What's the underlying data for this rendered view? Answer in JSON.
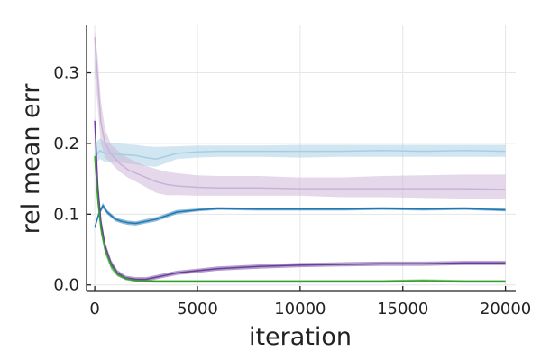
{
  "chart_data": {
    "type": "line",
    "title": "",
    "xlabel": "iteration",
    "ylabel": "rel mean err",
    "xlim": [
      -400,
      20500
    ],
    "ylim": [
      -0.008,
      0.367
    ],
    "x_ticks": [
      0,
      5000,
      10000,
      15000,
      20000
    ],
    "x_tick_labels": [
      "0",
      "5000",
      "10000",
      "15000",
      "20000"
    ],
    "y_ticks": [
      0.0,
      0.1,
      0.2,
      0.3
    ],
    "y_tick_labels": [
      "0.0",
      "0.1",
      "0.2",
      "0.3"
    ],
    "grid": true,
    "legend": "none",
    "series": [
      {
        "color": "#a6cee3",
        "x": [
          0,
          250,
          500,
          1000,
          1500,
          2000,
          2500,
          3000,
          4000,
          5000,
          6000,
          8000,
          10000,
          12000,
          14000,
          16000,
          18000,
          20000
        ],
        "y": [
          0.18,
          0.19,
          0.186,
          0.185,
          0.184,
          0.183,
          0.18,
          0.178,
          0.186,
          0.188,
          0.189,
          0.189,
          0.189,
          0.189,
          0.19,
          0.189,
          0.19,
          0.189
        ],
        "lower": [
          0.17,
          0.178,
          0.174,
          0.173,
          0.172,
          0.17,
          0.168,
          0.167,
          0.178,
          0.18,
          0.181,
          0.181,
          0.18,
          0.181,
          0.181,
          0.181,
          0.181,
          0.181
        ],
        "upper": [
          0.2,
          0.207,
          0.202,
          0.2,
          0.199,
          0.198,
          0.196,
          0.195,
          0.196,
          0.197,
          0.197,
          0.197,
          0.198,
          0.198,
          0.198,
          0.198,
          0.198,
          0.198
        ]
      },
      {
        "color": "#cab2d6",
        "x": [
          0,
          150,
          300,
          500,
          800,
          1200,
          1600,
          2000,
          2500,
          3000,
          3500,
          4000,
          5000,
          6000,
          8000,
          10000,
          12000,
          14000,
          16000,
          18000,
          20000
        ],
        "y": [
          0.35,
          0.29,
          0.23,
          0.2,
          0.185,
          0.172,
          0.163,
          0.158,
          0.152,
          0.146,
          0.142,
          0.14,
          0.138,
          0.137,
          0.137,
          0.136,
          0.136,
          0.136,
          0.136,
          0.136,
          0.135
        ],
        "lower": [
          0.3,
          0.25,
          0.2,
          0.18,
          0.172,
          0.16,
          0.152,
          0.146,
          0.138,
          0.13,
          0.127,
          0.127,
          0.126,
          0.126,
          0.126,
          0.126,
          0.124,
          0.124,
          0.123,
          0.122,
          0.122
        ],
        "upper": [
          0.36,
          0.32,
          0.26,
          0.22,
          0.198,
          0.188,
          0.18,
          0.174,
          0.168,
          0.164,
          0.16,
          0.158,
          0.155,
          0.154,
          0.154,
          0.152,
          0.152,
          0.154,
          0.155,
          0.156,
          0.156
        ]
      },
      {
        "color": "#1f78b4",
        "x": [
          0,
          200,
          400,
          600,
          800,
          1000,
          1300,
          1600,
          2000,
          2500,
          3000,
          3500,
          4000,
          5000,
          6000,
          8000,
          10000,
          12000,
          14000,
          16000,
          18000,
          20000
        ],
        "y": [
          0.081,
          0.101,
          0.112,
          0.103,
          0.098,
          0.093,
          0.09,
          0.088,
          0.087,
          0.09,
          0.093,
          0.098,
          0.103,
          0.106,
          0.108,
          0.107,
          0.107,
          0.107,
          0.108,
          0.107,
          0.108,
          0.106
        ],
        "lower": [
          0.079,
          0.098,
          0.108,
          0.1,
          0.095,
          0.09,
          0.087,
          0.085,
          0.084,
          0.087,
          0.09,
          0.095,
          0.1,
          0.104,
          0.106,
          0.105,
          0.105,
          0.105,
          0.106,
          0.105,
          0.106,
          0.104
        ],
        "upper": [
          0.083,
          0.104,
          0.116,
          0.106,
          0.101,
          0.096,
          0.093,
          0.091,
          0.09,
          0.093,
          0.096,
          0.101,
          0.106,
          0.108,
          0.11,
          0.109,
          0.109,
          0.109,
          0.11,
          0.109,
          0.11,
          0.108
        ]
      },
      {
        "color": "#6a3d9a",
        "x": [
          0,
          150,
          300,
          500,
          800,
          1100,
          1500,
          2000,
          2500,
          3000,
          3500,
          4000,
          5000,
          6000,
          8000,
          10000,
          12000,
          14000,
          16000,
          18000,
          20000
        ],
        "y": [
          0.232,
          0.14,
          0.09,
          0.055,
          0.03,
          0.017,
          0.01,
          0.008,
          0.008,
          0.011,
          0.014,
          0.017,
          0.02,
          0.023,
          0.026,
          0.028,
          0.029,
          0.03,
          0.03,
          0.031,
          0.031
        ],
        "lower": [
          0.225,
          0.132,
          0.083,
          0.049,
          0.025,
          0.013,
          0.007,
          0.005,
          0.005,
          0.008,
          0.011,
          0.014,
          0.017,
          0.02,
          0.023,
          0.025,
          0.026,
          0.027,
          0.027,
          0.028,
          0.028
        ],
        "upper": [
          0.238,
          0.148,
          0.097,
          0.061,
          0.035,
          0.021,
          0.013,
          0.011,
          0.011,
          0.014,
          0.017,
          0.02,
          0.023,
          0.026,
          0.029,
          0.031,
          0.032,
          0.033,
          0.033,
          0.034,
          0.034
        ]
      },
      {
        "color": "#33a02c",
        "x": [
          0,
          150,
          300,
          500,
          800,
          1100,
          1500,
          2000,
          3000,
          4000,
          6000,
          8000,
          10000,
          12000,
          14000,
          16000,
          18000,
          20000
        ],
        "y": [
          0.182,
          0.12,
          0.08,
          0.05,
          0.027,
          0.015,
          0.009,
          0.006,
          0.005,
          0.005,
          0.005,
          0.005,
          0.005,
          0.005,
          0.005,
          0.006,
          0.005,
          0.005
        ],
        "lower": [
          0.17,
          0.11,
          0.072,
          0.044,
          0.022,
          0.012,
          0.007,
          0.004,
          0.003,
          0.003,
          0.003,
          0.003,
          0.003,
          0.003,
          0.003,
          0.004,
          0.003,
          0.003
        ],
        "upper": [
          0.192,
          0.13,
          0.088,
          0.056,
          0.032,
          0.018,
          0.011,
          0.008,
          0.007,
          0.007,
          0.007,
          0.007,
          0.007,
          0.007,
          0.007,
          0.008,
          0.007,
          0.007
        ]
      }
    ]
  }
}
